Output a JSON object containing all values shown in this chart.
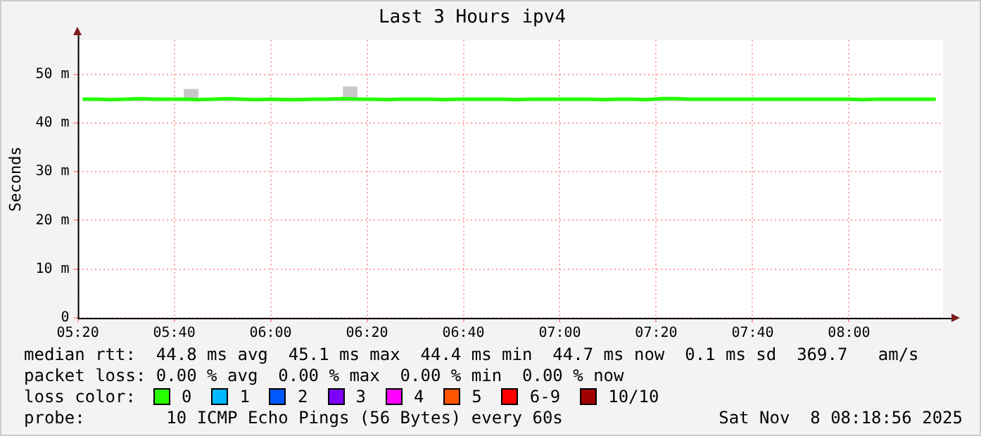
{
  "chart_data": {
    "type": "line",
    "title": "Last 3 Hours ipv4",
    "ylabel": "Seconds",
    "x": [
      5.35,
      5.4,
      5.45,
      5.5,
      5.55,
      5.6,
      5.65,
      5.7,
      5.75,
      5.8,
      5.85,
      5.9,
      5.95,
      6,
      6.05,
      6.1,
      6.15,
      6.2,
      6.25,
      6.3,
      6.35,
      6.4,
      6.45,
      6.5,
      6.55,
      6.6,
      6.65,
      6.7,
      6.75,
      6.8,
      6.85,
      6.9,
      6.95,
      7,
      7.05,
      7.1,
      7.15,
      7.2,
      7.25,
      7.3,
      7.35,
      7.4,
      7.45,
      7.5,
      7.55,
      7.6,
      7.65,
      7.7,
      7.75,
      7.8,
      7.85,
      7.9,
      7.95,
      8,
      8.05,
      8.1,
      8.15,
      8.2,
      8.25,
      8.3
    ],
    "series": [
      {
        "color": "#26ff00",
        "values": [
          44.9,
          44.9,
          44.8,
          44.9,
          45,
          44.9,
          44.9,
          44.9,
          44.8,
          44.9,
          45,
          44.9,
          44.8,
          44.9,
          44.8,
          44.8,
          44.9,
          44.9,
          45,
          44.9,
          44.9,
          44.8,
          44.9,
          44.9,
          44.9,
          44.8,
          44.9,
          44.9,
          44.9,
          44.9,
          44.8,
          44.9,
          44.9,
          44.9,
          44.9,
          44.9,
          44.8,
          44.9,
          44.9,
          44.8,
          45,
          45,
          44.9,
          44.9,
          44.9,
          44.9,
          44.9,
          44.9,
          44.9,
          44.9,
          44.9,
          44.9,
          44.9,
          44.9,
          44.8,
          44.9,
          44.9,
          44.9,
          44.9,
          44.9
        ],
        "lower": [
          44.5,
          44.5,
          44.5,
          44.5,
          44.5,
          44.5,
          44.5,
          44.5,
          44.5,
          44.5,
          44.5,
          44.5,
          44.5,
          44.5,
          44.5,
          44.5,
          44.5,
          44.5,
          44.5,
          44.5,
          44.5,
          44.5,
          44.5,
          44.5,
          44.5,
          44.5,
          44.5,
          44.5,
          44.5,
          44.5,
          44.5,
          44.5,
          44.5,
          44.5,
          44.5,
          44.5,
          44.5,
          44.5,
          44.5,
          44.5,
          44.5,
          44.5,
          44.5,
          44.5,
          44.5,
          44.5,
          44.5,
          44.5,
          44.5,
          44.5,
          44.5,
          44.5,
          44.5,
          44.5,
          44.5,
          44.5,
          44.5,
          44.5,
          44.5,
          44.5
        ],
        "upper": [
          45.2,
          45.2,
          45.2,
          45.2,
          45.2,
          45.2,
          45.2,
          47,
          45.2,
          45.2,
          45.2,
          45.2,
          45.2,
          45.2,
          45.2,
          45.2,
          45.2,
          45.2,
          47.5,
          45.2,
          45.2,
          45.2,
          45.2,
          45.2,
          45.2,
          45.2,
          45.2,
          45.2,
          45.2,
          45.2,
          45.2,
          45.2,
          45.2,
          45.2,
          45.2,
          45.2,
          45.2,
          45.2,
          45.2,
          45.2,
          45.2,
          45.2,
          45.2,
          45.2,
          45.2,
          45.2,
          45.2,
          45.2,
          45.2,
          45.2,
          45.2,
          45.2,
          45.2,
          45.2,
          45.2,
          45.2,
          45.2,
          45.2,
          45.2,
          45.2
        ]
      }
    ],
    "xlim": [
      5.3333,
      8.325
    ],
    "ylim": [
      0,
      57
    ],
    "xticks": [
      {
        "value": 5.3333,
        "label": "05:20"
      },
      {
        "value": 5.6667,
        "label": "05:40"
      },
      {
        "value": 6,
        "label": "06:00"
      },
      {
        "value": 6.3333,
        "label": "06:20"
      },
      {
        "value": 6.6667,
        "label": "06:40"
      },
      {
        "value": 7,
        "label": "07:00"
      },
      {
        "value": 7.3333,
        "label": "07:20"
      },
      {
        "value": 7.6667,
        "label": "07:40"
      },
      {
        "value": 8,
        "label": "08:00"
      }
    ],
    "yticks": [
      0,
      {
        "value": 10,
        "label": "10 m"
      },
      {
        "value": 20,
        "label": "20 m"
      },
      {
        "value": 30,
        "label": "30 m"
      },
      {
        "value": 40,
        "label": "40 m"
      },
      {
        "value": 50,
        "label": "50 m"
      }
    ],
    "grid": true,
    "marker": "none",
    "line_style": "solid",
    "annotations": [
      "median rtt:  44.8 ms avg  45.1 ms max  44.4 ms min  44.7 ms now  0.1 ms sd  369.7   am/s",
      "packet loss: 0.00 % avg  0.00 % max  0.00 % min  0.00 % now",
      "loss color:",
      "0",
      "1",
      "2",
      "3",
      "4",
      "5",
      "6-9",
      "10/10",
      "probe:        10 ICMP Echo Pings (56 Bytes) every 60s",
      "Sat Nov  8 08:18:56 2025"
    ]
  }
}
